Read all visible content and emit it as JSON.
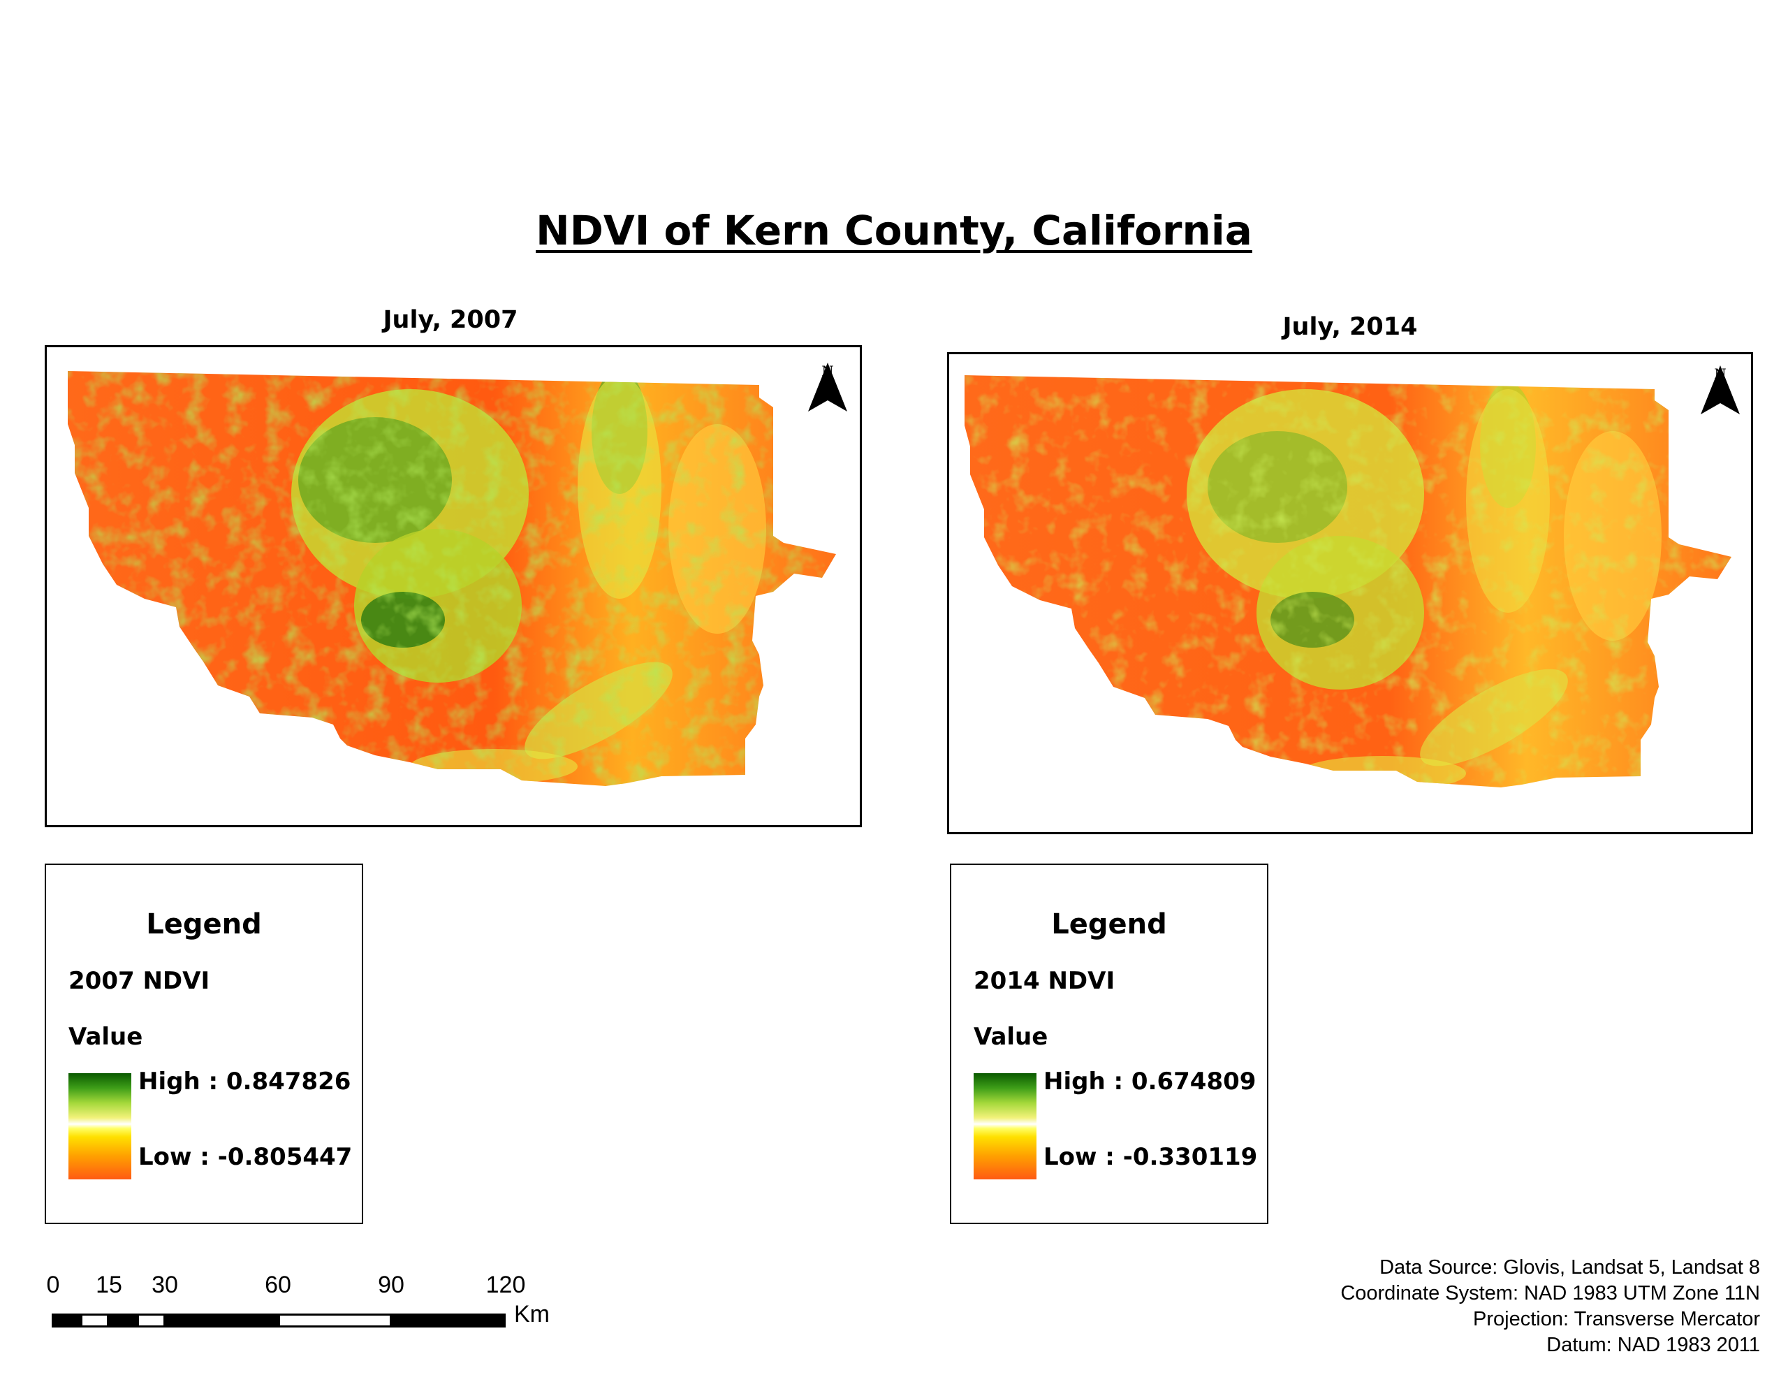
{
  "title": "NDVI of Kern County, California",
  "panels": [
    {
      "heading": "July, 2007",
      "north": "N",
      "legend": {
        "title": "Legend",
        "layer": "2007 NDVI",
        "value_label": "Value",
        "high": "High : 0.847826",
        "low": "Low : -0.805447"
      }
    },
    {
      "heading": "July, 2014",
      "north": "N",
      "legend": {
        "title": "Legend",
        "layer": "2014 NDVI",
        "value_label": "Value",
        "high": "High : 0.674809",
        "low": "Low : -0.330119"
      }
    }
  ],
  "scalebar": {
    "ticks": [
      "0",
      "15",
      "30",
      "60",
      "90",
      "120"
    ],
    "unit": "Km"
  },
  "credits": [
    "Data Source: Glovis, Landsat 5, Landsat 8",
    "Coordinate System: NAD 1983 UTM Zone 11N",
    "Projection: Transverse Mercator",
    "Datum: NAD 1983 2011"
  ],
  "colors": {
    "ndvi_high": "#0a5a00",
    "ndvi_mid_high": "#a4d83a",
    "ndvi_mid": "#ffff66",
    "ndvi_low": "#ff5a14"
  }
}
